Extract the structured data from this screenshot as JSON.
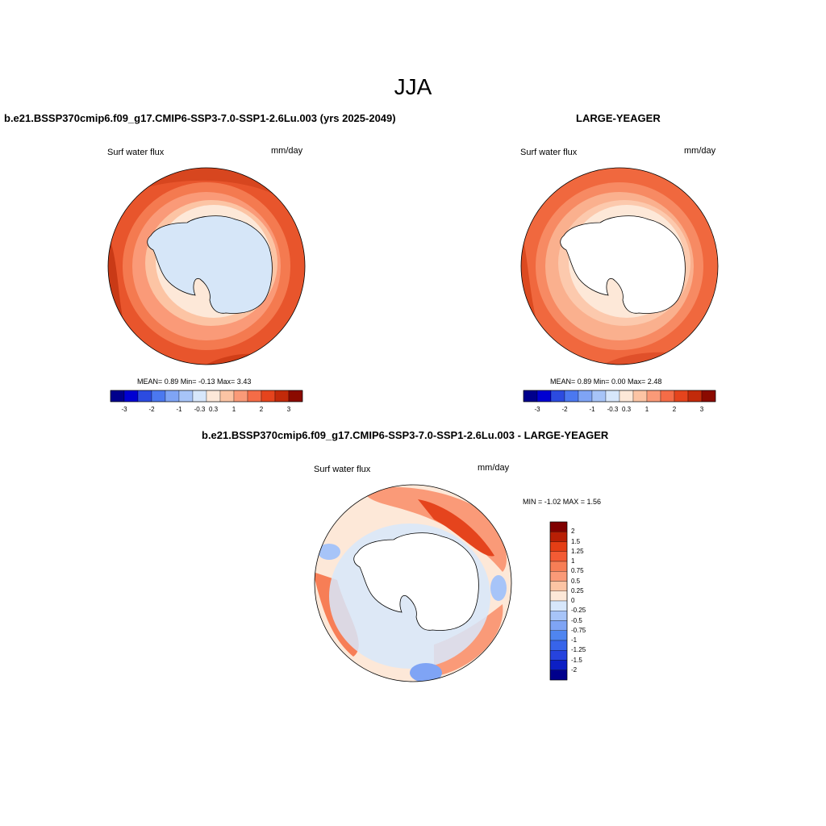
{
  "page_title": "JJA",
  "colors": {
    "coast": "#000000",
    "map_border": "#000000",
    "top_colorbar": [
      "#00008c",
      "#0000d2",
      "#2c4be0",
      "#4b78f0",
      "#7fa4f5",
      "#a7c4f8",
      "#d7e7fb",
      "#fde8d8",
      "#fcc4a4",
      "#fa9a78",
      "#f56c47",
      "#e5441d",
      "#c22a0a",
      "#8b0a00"
    ],
    "diff_colorbar": [
      "#00008c",
      "#0c1fc4",
      "#2643de",
      "#3764ea",
      "#4f85f0",
      "#7fa4f5",
      "#a7c4f8",
      "#d7e7fb",
      "#fde8d8",
      "#fcc4a4",
      "#fa9a78",
      "#f77e56",
      "#f35b34",
      "#e43e15",
      "#b81f05",
      "#800000"
    ]
  },
  "panels": [
    {
      "title": "b.e21.BSSP370cmip6.f09_g17.CMIP6-SSP3-7.0-SSP1-2.6Lu.003 (yrs 2025-2049)",
      "variable": "Surf water flux",
      "units": "mm/day",
      "stats": {
        "mean": "0.89",
        "min": "-0.13",
        "max": "3.43"
      },
      "stats_text": "MEAN=   0.89  Min=  -0.13  Max=   3.43",
      "colorbar_ticks": [
        "-3",
        "-2",
        "-1",
        "-0.3",
        "0.3",
        "1",
        "2",
        "3"
      ],
      "land_fill": "#d6e6f8"
    },
    {
      "title": "LARGE-YEAGER",
      "variable": "Surf water flux",
      "units": "mm/day",
      "stats": {
        "mean": "0.89",
        "min": "0.00",
        "max": "2.48"
      },
      "stats_text": "MEAN=   0.89  Min=   0.00  Max=   2.48",
      "colorbar_ticks": [
        "-3",
        "-2",
        "-1",
        "-0.3",
        "0.3",
        "1",
        "2",
        "3"
      ],
      "land_fill": "#ffffff"
    },
    {
      "title": "b.e21.BSSP370cmip6.f09_g17.CMIP6-SSP3-7.0-SSP1-2.6Lu.003 - LARGE-YEAGER",
      "variable": "Surf water flux",
      "units": "mm/day",
      "min_max_text": "MIN =  -1.02 MAX =   1.56",
      "colorbar_ticks": [
        "2",
        "1.5",
        "1.25",
        "1",
        "0.75",
        "0.5",
        "0.25",
        "0",
        "-0.25",
        "-0.5",
        "-0.75",
        "-1",
        "-1.25",
        "-1.5",
        "-2"
      ],
      "land_fill": "#ffffff"
    }
  ]
}
